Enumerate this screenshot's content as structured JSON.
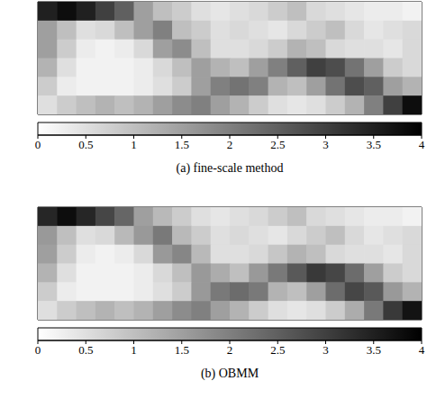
{
  "chart_data": [
    {
      "type": "heatmap",
      "title": "(a) fine-scale method",
      "tick_labels": false,
      "cells": [
        [
          3.5,
          3.8,
          3.5,
          3.0,
          2.5,
          1.5,
          1.0,
          0.8,
          0.5,
          0.4,
          0.5,
          0.6,
          0.8,
          1.0,
          0.6,
          0.5,
          0.4,
          0.3,
          0.3,
          0.2
        ],
        [
          1.5,
          1.0,
          0.5,
          0.6,
          1.0,
          1.5,
          2.0,
          1.0,
          0.8,
          0.5,
          0.6,
          0.5,
          0.4,
          0.6,
          0.8,
          1.0,
          0.6,
          0.4,
          0.5,
          0.6
        ],
        [
          1.5,
          0.8,
          0.3,
          0.2,
          0.3,
          0.6,
          1.5,
          1.8,
          1.0,
          0.5,
          0.5,
          0.6,
          0.8,
          1.2,
          1.0,
          0.6,
          0.5,
          0.5,
          0.4,
          0.6
        ],
        [
          1.2,
          0.5,
          0.2,
          0.2,
          0.2,
          0.3,
          0.6,
          1.0,
          1.5,
          1.2,
          1.0,
          1.5,
          2.0,
          2.5,
          3.0,
          2.8,
          2.2,
          1.5,
          0.8,
          0.6
        ],
        [
          0.8,
          0.3,
          0.2,
          0.2,
          0.2,
          0.3,
          0.5,
          0.8,
          1.5,
          2.0,
          2.2,
          2.0,
          1.2,
          1.0,
          1.5,
          2.2,
          2.8,
          2.5,
          1.5,
          1.2
        ],
        [
          0.5,
          0.8,
          1.0,
          1.2,
          1.0,
          1.2,
          1.5,
          1.8,
          2.0,
          1.5,
          1.2,
          0.8,
          0.5,
          0.4,
          0.5,
          0.8,
          1.2,
          2.0,
          3.0,
          3.8
        ]
      ],
      "colorbar_range": [
        0,
        4
      ],
      "colorbar_ticks": [
        0,
        0.5,
        1,
        1.5,
        2,
        2.5,
        3,
        3.5,
        4
      ]
    },
    {
      "type": "heatmap",
      "title": "(b) OBMM",
      "tick_labels": false,
      "cells": [
        [
          3.4,
          3.8,
          3.4,
          2.9,
          2.4,
          1.5,
          1.1,
          0.8,
          0.5,
          0.4,
          0.5,
          0.6,
          0.8,
          1.0,
          0.6,
          0.5,
          0.4,
          0.3,
          0.3,
          0.2
        ],
        [
          1.6,
          1.0,
          0.5,
          0.6,
          1.1,
          1.6,
          2.1,
          1.1,
          0.8,
          0.5,
          0.6,
          0.5,
          0.4,
          0.6,
          0.8,
          1.0,
          0.6,
          0.4,
          0.5,
          0.6
        ],
        [
          1.5,
          0.8,
          0.3,
          0.2,
          0.3,
          0.6,
          1.6,
          1.9,
          1.1,
          0.5,
          0.5,
          0.6,
          0.9,
          1.2,
          1.0,
          0.6,
          0.5,
          0.5,
          0.4,
          0.6
        ],
        [
          1.2,
          0.5,
          0.2,
          0.2,
          0.2,
          0.3,
          0.6,
          1.0,
          1.6,
          1.3,
          1.0,
          1.6,
          2.1,
          2.6,
          3.1,
          2.9,
          2.3,
          1.5,
          0.8,
          0.6
        ],
        [
          0.8,
          0.3,
          0.2,
          0.2,
          0.2,
          0.3,
          0.5,
          0.8,
          1.6,
          2.1,
          2.3,
          2.1,
          1.2,
          1.0,
          1.5,
          2.3,
          2.9,
          2.6,
          1.6,
          1.2
        ],
        [
          0.5,
          0.8,
          1.0,
          1.2,
          1.0,
          1.2,
          1.5,
          1.8,
          2.0,
          1.5,
          1.2,
          0.8,
          0.5,
          0.4,
          0.5,
          0.8,
          1.3,
          2.1,
          3.1,
          3.7
        ]
      ],
      "colorbar_range": [
        0,
        4
      ],
      "colorbar_ticks": [
        0,
        0.5,
        1,
        1.5,
        2,
        2.5,
        3,
        3.5,
        4
      ]
    }
  ]
}
